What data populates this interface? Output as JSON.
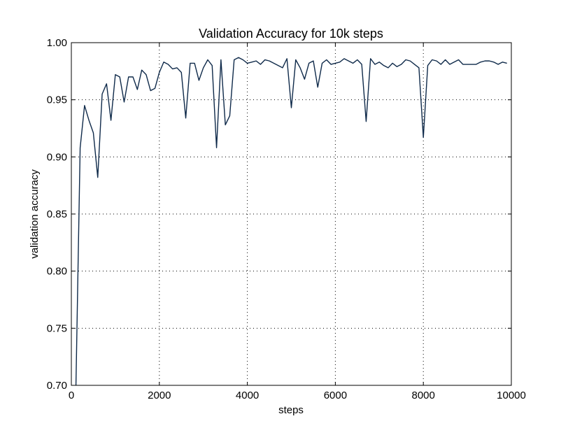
{
  "chart_data": {
    "type": "line",
    "title": "Validation Accuracy for 10k steps",
    "xlabel": "steps",
    "ylabel": "validation accuracy",
    "xlim": [
      0,
      10000
    ],
    "ylim": [
      0.7,
      1.0
    ],
    "xticks": [
      0,
      2000,
      4000,
      6000,
      8000,
      10000
    ],
    "xtick_labels": [
      "0",
      "2000",
      "4000",
      "6000",
      "8000",
      "10000"
    ],
    "yticks": [
      0.7,
      0.75,
      0.8,
      0.85,
      0.9,
      0.95,
      1.0
    ],
    "ytick_labels": [
      "0.70",
      "0.75",
      "0.80",
      "0.85",
      "0.90",
      "0.95",
      "1.00"
    ],
    "grid": true,
    "line_color": "#0f2a4a",
    "series": [
      {
        "x": [
          0,
          100,
          200,
          300,
          400,
          500,
          600,
          700,
          800,
          900,
          1000,
          1100,
          1200,
          1300,
          1400,
          1500,
          1600,
          1700,
          1800,
          1900,
          2000,
          2100,
          2200,
          2300,
          2400,
          2500,
          2600,
          2700,
          2800,
          2900,
          3000,
          3100,
          3200,
          3300,
          3400,
          3500,
          3600,
          3700,
          3800,
          3900,
          4000,
          4100,
          4200,
          4300,
          4400,
          4500,
          4600,
          4700,
          4800,
          4900,
          5000,
          5100,
          5200,
          5300,
          5400,
          5500,
          5600,
          5700,
          5800,
          5900,
          6000,
          6100,
          6200,
          6300,
          6400,
          6500,
          6600,
          6700,
          6800,
          6900,
          7000,
          7100,
          7200,
          7300,
          7400,
          7500,
          7600,
          7700,
          7800,
          7900,
          8000,
          8100,
          8200,
          8300,
          8400,
          8500,
          8600,
          8700,
          8800,
          8900,
          9000,
          9100,
          9200,
          9300,
          9400,
          9500,
          9600,
          9700,
          9800,
          9900
        ],
        "y": [
          0.69,
          0.69,
          0.908,
          0.945,
          0.932,
          0.921,
          0.882,
          0.955,
          0.964,
          0.932,
          0.972,
          0.97,
          0.948,
          0.97,
          0.97,
          0.959,
          0.976,
          0.972,
          0.958,
          0.96,
          0.974,
          0.983,
          0.981,
          0.977,
          0.978,
          0.974,
          0.934,
          0.982,
          0.982,
          0.967,
          0.978,
          0.985,
          0.98,
          0.908,
          0.985,
          0.928,
          0.936,
          0.985,
          0.987,
          0.985,
          0.982,
          0.983,
          0.984,
          0.981,
          0.985,
          0.984,
          0.982,
          0.98,
          0.978,
          0.986,
          0.943,
          0.985,
          0.978,
          0.968,
          0.982,
          0.984,
          0.961,
          0.982,
          0.985,
          0.981,
          0.982,
          0.983,
          0.986,
          0.984,
          0.982,
          0.985,
          0.981,
          0.931,
          0.986,
          0.981,
          0.983,
          0.98,
          0.978,
          0.982,
          0.979,
          0.981,
          0.985,
          0.984,
          0.981,
          0.978,
          0.917,
          0.98,
          0.985,
          0.984,
          0.981,
          0.985,
          0.981,
          0.983,
          0.985,
          0.981,
          0.981,
          0.981,
          0.981,
          0.983,
          0.984,
          0.984,
          0.983,
          0.981,
          0.983,
          0.982
        ]
      }
    ]
  }
}
